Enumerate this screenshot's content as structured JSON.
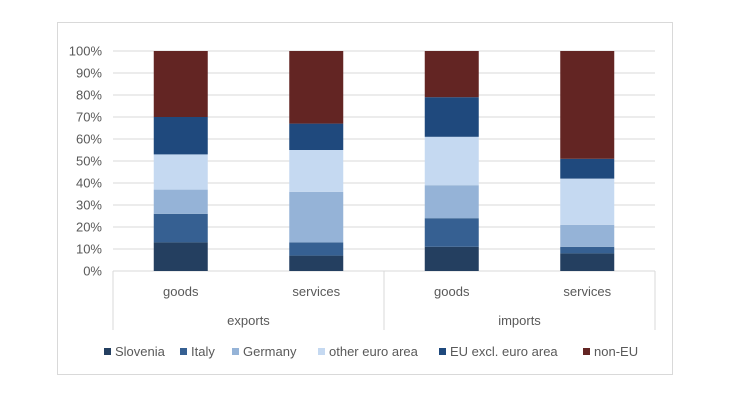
{
  "chart_data": {
    "type": "bar",
    "stacked": true,
    "normalized": true,
    "groups": [
      {
        "label": "exports",
        "categories": [
          "goods",
          "services"
        ]
      },
      {
        "label": "imports",
        "categories": [
          "goods",
          "services"
        ]
      }
    ],
    "categories": [
      "exports goods",
      "exports services",
      "imports goods",
      "imports services"
    ],
    "series": [
      {
        "name": "Slovenia",
        "color": "#243F60",
        "values": [
          13,
          7,
          11,
          8
        ]
      },
      {
        "name": "Italy",
        "color": "#366092",
        "values": [
          13,
          6,
          13,
          3
        ]
      },
      {
        "name": "Germany",
        "color": "#95B3D7",
        "values": [
          11,
          23,
          15,
          10
        ]
      },
      {
        "name": "other euro area",
        "color": "#C5D9F1",
        "values": [
          16,
          19,
          22,
          21
        ]
      },
      {
        "name": "EU excl. euro area",
        "color": "#1F497D",
        "values": [
          17,
          12,
          18,
          9
        ]
      },
      {
        "name": "non-EU",
        "color": "#632523",
        "values": [
          30,
          33,
          21,
          49
        ]
      }
    ],
    "ylim": [
      0,
      100
    ],
    "yticks": [
      "0%",
      "10%",
      "20%",
      "30%",
      "40%",
      "50%",
      "60%",
      "70%",
      "80%",
      "90%",
      "100%"
    ],
    "grid": true,
    "legend": "bottom"
  }
}
